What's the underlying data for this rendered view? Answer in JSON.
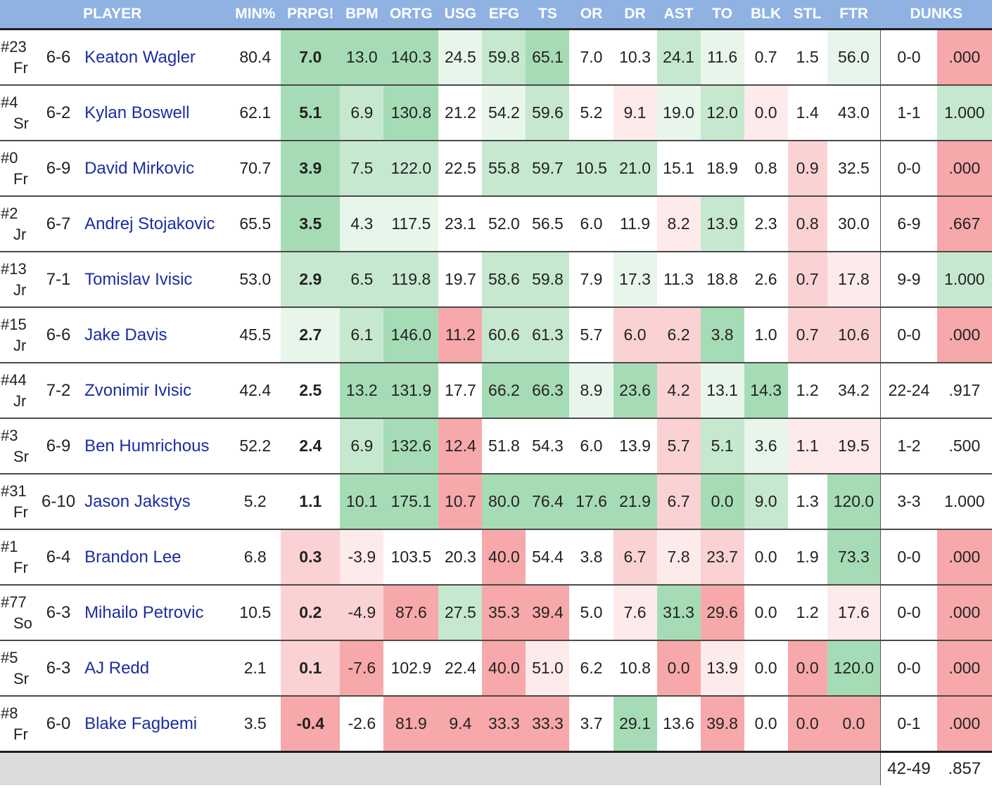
{
  "columns": [
    "PLAYER",
    "MIN%",
    "PRPG!",
    "BPM",
    "ORTG",
    "USG",
    "EFG",
    "TS",
    "OR",
    "DR",
    "AST",
    "TO",
    "BLK",
    "STL",
    "FTR",
    "DUNKS"
  ],
  "palette": {
    "header_bg": "#8fb2e3",
    "good_strong": "#a6dcb5",
    "good_mid": "#c6e8cf",
    "good_light": "#e8f5eb",
    "bad_strong": "#f7a8aa",
    "bad_mid": "#fbd2d3",
    "bad_light": "#fdeaea",
    "neutral": "#ffffff"
  },
  "players": [
    {
      "num": "#23",
      "cls": "Fr",
      "ht": "6-6",
      "name": "Keaton Wagler",
      "min": "80.4",
      "prpg": "7.0",
      "bpm": "13.0",
      "ortg": "140.3",
      "usg": "24.5",
      "efg": "59.8",
      "ts": "65.1",
      "or": "7.0",
      "dr": "10.3",
      "ast": "24.1",
      "to": "11.6",
      "blk": "0.7",
      "stl": "1.5",
      "ftr": "56.0",
      "dunks": "0-0",
      "dunkpct": ".000",
      "heat": {
        "prpg": "gs",
        "bpm": "gs",
        "ortg": "gs",
        "usg": "gl",
        "efg": "gm",
        "ts": "gs",
        "ast": "gm",
        "to": "gl",
        "ftr": "gl",
        "dunkpct": "bs"
      }
    },
    {
      "num": "#4",
      "cls": "Sr",
      "ht": "6-2",
      "name": "Kylan Boswell",
      "min": "62.1",
      "prpg": "5.1",
      "bpm": "6.9",
      "ortg": "130.8",
      "usg": "21.2",
      "efg": "54.2",
      "ts": "59.6",
      "or": "5.2",
      "dr": "9.1",
      "ast": "19.0",
      "to": "12.0",
      "blk": "0.0",
      "stl": "1.4",
      "ftr": "43.0",
      "dunks": "1-1",
      "dunkpct": "1.000",
      "heat": {
        "prpg": "gs",
        "bpm": "gm",
        "ortg": "gs",
        "efg": "gl",
        "ts": "gm",
        "dr": "bl",
        "ast": "gl",
        "to": "gm",
        "blk": "bl",
        "dunkpct": "gm"
      }
    },
    {
      "num": "#0",
      "cls": "Fr",
      "ht": "6-9",
      "name": "David Mirkovic",
      "min": "70.7",
      "prpg": "3.9",
      "bpm": "7.5",
      "ortg": "122.0",
      "usg": "22.5",
      "efg": "55.8",
      "ts": "59.7",
      "or": "10.5",
      "dr": "21.0",
      "ast": "15.1",
      "to": "18.9",
      "blk": "0.8",
      "stl": "0.9",
      "ftr": "32.5",
      "dunks": "0-0",
      "dunkpct": ".000",
      "heat": {
        "prpg": "gs",
        "bpm": "gm",
        "ortg": "gm",
        "efg": "gm",
        "ts": "gm",
        "or": "gm",
        "dr": "gm",
        "stl": "bm",
        "dunkpct": "bs"
      }
    },
    {
      "num": "#2",
      "cls": "Jr",
      "ht": "6-7",
      "name": "Andrej Stojakovic",
      "min": "65.5",
      "prpg": "3.5",
      "bpm": "4.3",
      "ortg": "117.5",
      "usg": "23.1",
      "efg": "52.0",
      "ts": "56.5",
      "or": "6.0",
      "dr": "11.9",
      "ast": "8.2",
      "to": "13.9",
      "blk": "2.3",
      "stl": "0.8",
      "ftr": "30.0",
      "dunks": "6-9",
      "dunkpct": ".667",
      "heat": {
        "prpg": "gs",
        "bpm": "gl",
        "ortg": "gl",
        "ast": "bl",
        "to": "gm",
        "stl": "bm",
        "dunkpct": "bs"
      }
    },
    {
      "num": "#13",
      "cls": "Jr",
      "ht": "7-1",
      "name": "Tomislav Ivisic",
      "min": "53.0",
      "prpg": "2.9",
      "bpm": "6.5",
      "ortg": "119.8",
      "usg": "19.7",
      "efg": "58.6",
      "ts": "59.8",
      "or": "7.9",
      "dr": "17.3",
      "ast": "11.3",
      "to": "18.8",
      "blk": "2.6",
      "stl": "0.7",
      "ftr": "17.8",
      "dunks": "9-9",
      "dunkpct": "1.000",
      "heat": {
        "prpg": "gm",
        "bpm": "gm",
        "ortg": "gm",
        "efg": "gm",
        "ts": "gm",
        "dr": "gl",
        "stl": "bm",
        "ftr": "bl",
        "dunkpct": "gm"
      }
    },
    {
      "num": "#15",
      "cls": "Jr",
      "ht": "6-6",
      "name": "Jake Davis",
      "min": "45.5",
      "prpg": "2.7",
      "bpm": "6.1",
      "ortg": "146.0",
      "usg": "11.2",
      "efg": "60.6",
      "ts": "61.3",
      "or": "5.7",
      "dr": "6.0",
      "ast": "6.2",
      "to": "3.8",
      "blk": "1.0",
      "stl": "0.7",
      "ftr": "10.6",
      "dunks": "0-0",
      "dunkpct": ".000",
      "heat": {
        "prpg": "gl",
        "bpm": "gm",
        "ortg": "gs",
        "usg": "bs",
        "efg": "gm",
        "ts": "gm",
        "dr": "bm",
        "ast": "bm",
        "to": "gs",
        "stl": "bm",
        "ftr": "bm",
        "dunkpct": "bs"
      }
    },
    {
      "num": "#44",
      "cls": "Jr",
      "ht": "7-2",
      "name": "Zvonimir Ivisic",
      "min": "42.4",
      "prpg": "2.5",
      "bpm": "13.2",
      "ortg": "131.9",
      "usg": "17.7",
      "efg": "66.2",
      "ts": "66.3",
      "or": "8.9",
      "dr": "23.6",
      "ast": "4.2",
      "to": "13.1",
      "blk": "14.3",
      "stl": "1.2",
      "ftr": "34.2",
      "dunks": "22-24",
      "dunkpct": ".917",
      "heat": {
        "bpm": "gs",
        "ortg": "gs",
        "efg": "gs",
        "ts": "gs",
        "or": "gl",
        "dr": "gs",
        "ast": "bm",
        "to": "gl",
        "blk": "gs"
      }
    },
    {
      "num": "#3",
      "cls": "Sr",
      "ht": "6-9",
      "name": "Ben Humrichous",
      "min": "52.2",
      "prpg": "2.4",
      "bpm": "6.9",
      "ortg": "132.6",
      "usg": "12.4",
      "efg": "51.8",
      "ts": "54.3",
      "or": "6.0",
      "dr": "13.9",
      "ast": "5.7",
      "to": "5.1",
      "blk": "3.6",
      "stl": "1.1",
      "ftr": "19.5",
      "dunks": "1-2",
      "dunkpct": ".500",
      "heat": {
        "bpm": "gm",
        "ortg": "gs",
        "usg": "bs",
        "ast": "bm",
        "to": "gm",
        "blk": "gl",
        "stl": "bl",
        "ftr": "bl"
      }
    },
    {
      "num": "#31",
      "cls": "Fr",
      "ht": "6-10",
      "name": "Jason Jakstys",
      "min": "5.2",
      "prpg": "1.1",
      "bpm": "10.1",
      "ortg": "175.1",
      "usg": "10.7",
      "efg": "80.0",
      "ts": "76.4",
      "or": "17.6",
      "dr": "21.9",
      "ast": "6.7",
      "to": "0.0",
      "blk": "9.0",
      "stl": "1.3",
      "ftr": "120.0",
      "dunks": "3-3",
      "dunkpct": "1.000",
      "heat": {
        "bpm": "gs",
        "ortg": "gs",
        "usg": "bs",
        "efg": "gs",
        "ts": "gs",
        "or": "gs",
        "dr": "gs",
        "ast": "bm",
        "to": "gs",
        "blk": "gm",
        "ftr": "gs"
      }
    },
    {
      "num": "#1",
      "cls": "Fr",
      "ht": "6-4",
      "name": "Brandon Lee",
      "min": "6.8",
      "prpg": "0.3",
      "bpm": "-3.9",
      "ortg": "103.5",
      "usg": "20.3",
      "efg": "40.0",
      "ts": "54.4",
      "or": "3.8",
      "dr": "6.7",
      "ast": "7.8",
      "to": "23.7",
      "blk": "0.0",
      "stl": "1.9",
      "ftr": "73.3",
      "dunks": "0-0",
      "dunkpct": ".000",
      "heat": {
        "prpg": "bm",
        "bpm": "bl",
        "efg": "bs",
        "dr": "bm",
        "ast": "bl",
        "to": "bm",
        "ftr": "gs",
        "dunkpct": "bs"
      }
    },
    {
      "num": "#77",
      "cls": "So",
      "ht": "6-3",
      "name": "Mihailo Petrovic",
      "min": "10.5",
      "prpg": "0.2",
      "bpm": "-4.9",
      "ortg": "87.6",
      "usg": "27.5",
      "efg": "35.3",
      "ts": "39.4",
      "or": "5.0",
      "dr": "7.6",
      "ast": "31.3",
      "to": "29.6",
      "blk": "0.0",
      "stl": "1.2",
      "ftr": "17.6",
      "dunks": "0-0",
      "dunkpct": ".000",
      "heat": {
        "prpg": "bm",
        "bpm": "bm",
        "ortg": "bs",
        "usg": "gm",
        "efg": "bs",
        "ts": "bs",
        "dr": "bl",
        "ast": "gs",
        "to": "bs",
        "ftr": "bl",
        "dunkpct": "bs"
      }
    },
    {
      "num": "#5",
      "cls": "Sr",
      "ht": "6-3",
      "name": "AJ Redd",
      "min": "2.1",
      "prpg": "0.1",
      "bpm": "-7.6",
      "ortg": "102.9",
      "usg": "22.4",
      "efg": "40.0",
      "ts": "51.0",
      "or": "6.2",
      "dr": "10.8",
      "ast": "0.0",
      "to": "13.9",
      "blk": "0.0",
      "stl": "0.0",
      "ftr": "120.0",
      "dunks": "0-0",
      "dunkpct": ".000",
      "heat": {
        "prpg": "bm",
        "bpm": "bs",
        "efg": "bs",
        "ts": "bl",
        "ast": "bs",
        "to": "bl",
        "stl": "bs",
        "ftr": "gs",
        "dunkpct": "bs"
      }
    },
    {
      "num": "#8",
      "cls": "Fr",
      "ht": "6-0",
      "name": "Blake Fagbemi",
      "min": "3.5",
      "prpg": "-0.4",
      "bpm": "-2.6",
      "ortg": "81.9",
      "usg": "9.4",
      "efg": "33.3",
      "ts": "33.3",
      "or": "3.7",
      "dr": "29.1",
      "ast": "13.6",
      "to": "39.8",
      "blk": "0.0",
      "stl": "0.0",
      "ftr": "0.0",
      "dunks": "0-1",
      "dunkpct": ".000",
      "heat": {
        "prpg": "bs",
        "ortg": "bs",
        "usg": "bs",
        "efg": "bs",
        "ts": "bs",
        "dr": "gs",
        "to": "bs",
        "stl": "bs",
        "ftr": "bs",
        "dunkpct": "bs"
      }
    }
  ],
  "totals": {
    "dunks": "42-49",
    "dunkpct": ".857"
  }
}
